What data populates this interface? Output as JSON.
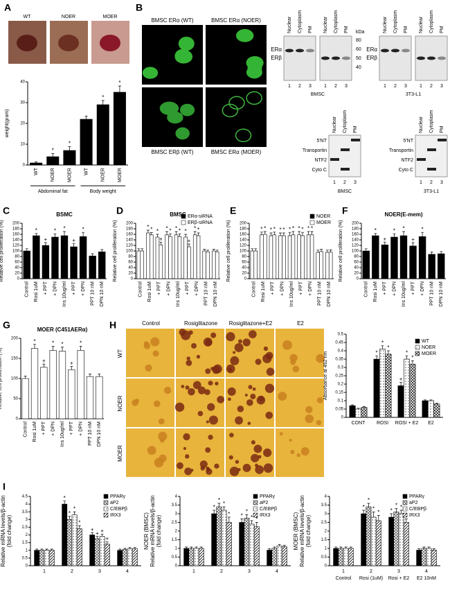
{
  "panel_labels": {
    "a": "A",
    "b": "B",
    "c": "C",
    "d": "D",
    "e": "E",
    "f": "F",
    "g": "G",
    "h": "H",
    "i": "I"
  },
  "panel_a": {
    "photos": [
      "WT",
      "NOER",
      "MOER"
    ]
  },
  "panel_b": {
    "images": [
      "BMSC ERα (WT)",
      "BMSC ERα (NOER)",
      "BMSC ERβ (WT)",
      "BMSC ERα (MOER)"
    ],
    "er_blots": [
      {
        "lanes_a": [
          "Nuclear",
          "Cytoplasm",
          "PM"
        ],
        "lanes_b": [
          "Nuclear",
          "Cytoplasm",
          "PM"
        ],
        "bands": [
          "ERα",
          "ERβ"
        ],
        "kda_title": "kDa",
        "kda": [
          "80",
          "60",
          "50",
          "40"
        ],
        "numbers_a": [
          "1",
          "2",
          "3"
        ],
        "numbers_b": [
          "1",
          "2",
          "3"
        ],
        "cell": "BMSC"
      },
      {
        "lanes_a": [
          "Nuclear",
          "Cytoplasm",
          "PM"
        ],
        "lanes_b": [
          "Nuclear",
          "Cytoplasm",
          "PM"
        ],
        "bands": [
          "ERα",
          "ERβ"
        ],
        "numbers_a": [
          "1",
          "2",
          "3"
        ],
        "numbers_b": [
          "1",
          "2",
          "3"
        ],
        "cell": "3T3-L1"
      }
    ],
    "fraction_blots": [
      {
        "lanes": [
          "Nuclear",
          "Cytoplasm",
          "PM"
        ],
        "markers": [
          "5'NT",
          "Transportin",
          "NTF2",
          "Cyto C"
        ],
        "numbers": [
          "1",
          "2",
          "3"
        ],
        "cell": "BMSC"
      },
      {
        "lanes": [
          "Nuclear",
          "Cytoplasm",
          "PM"
        ],
        "markers": [
          "5'NT",
          "Transportin",
          "NTF2",
          "Cyto C"
        ],
        "numbers": [
          "1",
          "2",
          "3"
        ],
        "cell": "3T3-L1"
      }
    ]
  },
  "panel_h": {
    "columns": [
      "Control",
      "Rosiglitazone",
      "Rosiglitazone+E2",
      "E2"
    ],
    "rows": [
      "WT",
      "NOER",
      "MOER"
    ]
  },
  "chart_data": [
    {
      "type": "bar",
      "ylabel": "weight(gram)",
      "categories": [
        "WT",
        "NOER",
        "MOER",
        "WT",
        "NOER",
        "MOER"
      ],
      "group_labels": [
        "Abdominal fat",
        "Body weight"
      ],
      "values": [
        1,
        4,
        7,
        22,
        29,
        35
      ],
      "errors": [
        0.5,
        1.5,
        1.8,
        1.5,
        2,
        3
      ],
      "marks": [
        null,
        "*",
        "*",
        null,
        "*",
        "*"
      ],
      "color": "#000000",
      "ylim": [
        0,
        40
      ],
      "yticks": [
        0,
        10,
        20,
        30,
        40
      ]
    },
    {
      "type": "bar",
      "title": "BSMC",
      "ylabel": "Relative cell proliferation (%)",
      "categories": [
        "Control",
        "Rosi 1uM",
        "+ PPT",
        "+ DPN",
        "Ins 10ug/ml",
        "+ PPT",
        "+ DPN",
        "PPT 10 nM",
        "DPN 10 nM"
      ],
      "values": [
        100,
        155,
        120,
        150,
        155,
        115,
        152,
        82,
        97
      ],
      "errors": [
        8,
        8,
        10,
        12,
        15,
        12,
        15,
        8,
        8
      ],
      "marks": [
        null,
        "*",
        "+",
        "*",
        "*",
        "+",
        "*",
        null,
        null
      ],
      "color": "#000000",
      "ylim": [
        0,
        200
      ],
      "yticks": [
        0,
        20,
        40,
        60,
        80,
        100,
        120,
        140,
        160,
        180,
        200
      ]
    },
    {
      "type": "bar",
      "title": "BMSC",
      "ylabel": "Relative cell proliferation (%)",
      "categories": [
        "Control",
        "Rosi 1uM",
        "+ PPT",
        "+ DPN",
        "Ins 10ug/ml",
        "+ PPT",
        "+ DPN",
        "PPT 10 nM",
        "DPN 10 nM"
      ],
      "series": [
        {
          "name": "ERα-siRNA",
          "color": "#ffffff",
          "legend_color": "#000000",
          "values": [
            100,
            165,
            150,
            158,
            158,
            150,
            158,
            100,
            100
          ],
          "errors": [
            8,
            10,
            10,
            12,
            12,
            10,
            12,
            6,
            6
          ],
          "marks": [
            null,
            "*",
            "*",
            "*",
            "*",
            "*",
            "*",
            null,
            null
          ]
        },
        {
          "name": "ERβ-siRNA",
          "color": "#ffffff",
          "values": [
            100,
            158,
            122,
            152,
            152,
            115,
            155,
            97,
            97
          ],
          "errors": [
            8,
            8,
            10,
            10,
            10,
            10,
            10,
            6,
            6
          ],
          "marks": [
            null,
            "*",
            "+",
            "*",
            "*",
            "+",
            "*",
            null,
            null
          ]
        }
      ],
      "ylim": [
        0,
        200
      ],
      "yticks": [
        0,
        20,
        40,
        60,
        80,
        100,
        120,
        140,
        160,
        180,
        200
      ]
    },
    {
      "type": "bar",
      "ylabel": "Relative cell proliferation (%)",
      "categories": [
        "Control",
        "Rosi 1uM",
        "+ PPT",
        "+ DPN",
        "Ins 10ug/ml",
        "+ PPT",
        "+ DPN",
        "PPT 10 nM",
        "DPN 10 nM"
      ],
      "series": [
        {
          "name": "NOER",
          "color": "#ffffff",
          "legend_color": "#000000",
          "values": [
            100,
            158,
            155,
            155,
            155,
            158,
            158,
            95,
            95
          ],
          "errors": [
            8,
            10,
            10,
            10,
            12,
            12,
            12,
            8,
            8
          ],
          "marks": [
            null,
            "*",
            "*",
            "*",
            "*",
            "*",
            "*",
            null,
            null
          ]
        },
        {
          "name": "MOER",
          "color": "#ffffff",
          "values": [
            100,
            160,
            158,
            155,
            158,
            155,
            158,
            98,
            96
          ],
          "errors": [
            8,
            10,
            10,
            10,
            12,
            12,
            12,
            8,
            8
          ],
          "marks": [
            null,
            "*",
            "*",
            "*",
            "*",
            "*",
            "*",
            null,
            null
          ]
        }
      ],
      "ylim": [
        0,
        200
      ],
      "yticks": [
        0,
        20,
        40,
        60,
        80,
        100,
        120,
        140,
        160,
        180,
        200
      ]
    },
    {
      "type": "bar",
      "title": "NOER(E-mem)",
      "ylabel": "Relative cell proliferation (%)",
      "categories": [
        "Control",
        "Rosi 1uM",
        "+ PPT",
        "+ DPN",
        "Ins 10ug/ml",
        "+ PPT",
        "+ DPN",
        "PPT 10 nM",
        "DPN 10 nM"
      ],
      "values": [
        100,
        155,
        122,
        150,
        155,
        118,
        152,
        88,
        90
      ],
      "errors": [
        8,
        8,
        10,
        12,
        15,
        12,
        15,
        8,
        8
      ],
      "marks": [
        null,
        "*",
        "+",
        "*",
        "*",
        "+",
        "*",
        null,
        null
      ],
      "color": "#000000",
      "ylim": [
        0,
        200
      ],
      "yticks": [
        0,
        20,
        40,
        60,
        80,
        100,
        120,
        140,
        160,
        180,
        200
      ]
    },
    {
      "type": "bar",
      "title": "MOER (C451AERα)",
      "ylabel": "Relative cell proliferation (%)",
      "categories": [
        "Control",
        "Rosi 1uM",
        "+ PPT",
        "+ DPN",
        "Ins 10ug/ml",
        "+ PPT",
        "+ DPN",
        "PPT 10 nM",
        "DPN 10 nM"
      ],
      "values": [
        100,
        175,
        128,
        170,
        168,
        122,
        170,
        105,
        105
      ],
      "errors": [
        6,
        10,
        8,
        10,
        10,
        8,
        10,
        6,
        6
      ],
      "marks": [
        null,
        "*",
        "+",
        "*",
        "*",
        "+",
        "*",
        null,
        null
      ],
      "color": "#ffffff",
      "ylim": [
        0,
        200
      ],
      "yticks": [
        0,
        50,
        100,
        150,
        200
      ]
    },
    {
      "type": "bar",
      "ylabel": "Absorbance at 492 nm",
      "categories": [
        "CONT",
        "ROSI",
        "ROSI + E2",
        "E2"
      ],
      "series": [
        {
          "name": "WT",
          "color": "#000000",
          "values": [
            0.07,
            0.35,
            0.19,
            0.1
          ],
          "errors": [
            0.005,
            0.02,
            0.02,
            0.005
          ],
          "marks": [
            null,
            "*",
            "+",
            null
          ]
        },
        {
          "name": "NOER",
          "color": "#777777",
          "pattern": "dots",
          "values": [
            0.05,
            0.41,
            0.35,
            0.1
          ],
          "errors": [
            0.005,
            0.02,
            0.02,
            0.005
          ],
          "marks": [
            null,
            "*",
            "*",
            null
          ]
        },
        {
          "name": "MOER",
          "color": "#000000",
          "pattern": "cross",
          "values": [
            0.06,
            0.38,
            0.32,
            0.08
          ],
          "errors": [
            0.005,
            0.02,
            0.02,
            0.005
          ],
          "marks": [
            null,
            "*",
            "*",
            null
          ]
        }
      ],
      "ylim": [
        0,
        0.5
      ],
      "yticks": [
        0,
        0.05,
        0.1,
        0.15,
        0.2,
        0.25,
        0.3,
        0.35,
        0.4,
        0.45,
        0.5
      ]
    },
    {
      "type": "bar",
      "ylabel": [
        "WT (BMSC)",
        "Relative mRNA levels/β-actin",
        "(fold change)"
      ],
      "categories": [
        "1",
        "2",
        "3",
        "4"
      ],
      "series": [
        {
          "name": "PPARγ",
          "color": "#000000",
          "values": [
            1,
            4.0,
            2.0,
            1.0
          ],
          "errors": [
            0.08,
            0.2,
            0.15,
            0.08
          ],
          "marks": [
            null,
            "*",
            "+",
            null
          ]
        },
        {
          "name": "aP2",
          "color": "#444444",
          "pattern": "cross",
          "values": [
            1,
            3.0,
            1.75,
            1.05
          ],
          "errors": [
            0.08,
            0.2,
            0.15,
            0.08
          ],
          "marks": [
            null,
            "*",
            "+",
            null
          ]
        },
        {
          "name": "C/EBPβ",
          "color": "#777777",
          "pattern": "dots",
          "values": [
            1,
            3.3,
            1.9,
            1.1
          ],
          "errors": [
            0.08,
            0.2,
            0.15,
            0.08
          ],
          "marks": [
            null,
            "*",
            "+",
            null
          ]
        },
        {
          "name": "IRX3",
          "color": "#000000",
          "pattern": "hatch",
          "values": [
            1,
            2.4,
            1.4,
            1.1
          ],
          "errors": [
            0.08,
            0.2,
            0.15,
            0.08
          ],
          "marks": [
            null,
            "*",
            "+",
            null
          ]
        }
      ],
      "ylim": [
        0,
        4.5
      ],
      "yticks": [
        0,
        0.5,
        1,
        1.5,
        2,
        2.5,
        3,
        3.5,
        4,
        4.5
      ]
    },
    {
      "type": "bar",
      "ylabel": [
        "NOER (BMSC)",
        "Relative mRNA levels/β-actin",
        "(fold change)"
      ],
      "categories": [
        "1",
        "2",
        "3",
        "4"
      ],
      "series": [
        {
          "name": "PPARγ",
          "color": "#000000",
          "values": [
            1,
            3.0,
            2.5,
            0.9
          ],
          "errors": [
            0.08,
            0.2,
            0.2,
            0.08
          ],
          "marks": [
            null,
            "*",
            "*",
            null
          ]
        },
        {
          "name": "aP2",
          "color": "#444444",
          "pattern": "cross",
          "values": [
            1,
            3.4,
            2.75,
            1.0
          ],
          "errors": [
            0.08,
            0.2,
            0.2,
            0.08
          ],
          "marks": [
            null,
            "*",
            "*",
            null
          ]
        },
        {
          "name": "C/EBPβ",
          "color": "#777777",
          "pattern": "dots",
          "values": [
            1,
            3.2,
            2.4,
            1.15
          ],
          "errors": [
            0.08,
            0.2,
            0.2,
            0.08
          ],
          "marks": [
            null,
            "*",
            "*",
            null
          ]
        },
        {
          "name": "IRX3",
          "color": "#000000",
          "pattern": "hatch",
          "values": [
            1,
            2.5,
            2.25,
            1.1
          ],
          "errors": [
            0.08,
            0.3,
            0.25,
            0.08
          ],
          "marks": [
            null,
            "*",
            "*",
            null
          ]
        }
      ],
      "ylim": [
        0,
        4
      ],
      "yticks": [
        0,
        0.5,
        1,
        1.5,
        2,
        2.5,
        3,
        3.5,
        4
      ]
    },
    {
      "type": "bar",
      "ylabel": [
        "MOER (BMSC)",
        "Relative mRNA levels/β-actin",
        "(fold change)"
      ],
      "categories": [
        "1",
        "2",
        "3",
        "4"
      ],
      "conditions": [
        "Control",
        "Rosi (1uM)",
        "Rosi + E2",
        "E2 10nM"
      ],
      "series": [
        {
          "name": "PPARγ",
          "color": "#000000",
          "values": [
            1,
            3.0,
            2.8,
            0.9
          ],
          "errors": [
            0.08,
            0.2,
            0.2,
            0.08
          ],
          "marks": [
            null,
            "*",
            "*",
            null
          ]
        },
        {
          "name": "aP2",
          "color": "#444444",
          "pattern": "cross",
          "values": [
            1,
            3.4,
            3.1,
            1.0
          ],
          "errors": [
            0.08,
            0.2,
            0.2,
            0.08
          ],
          "marks": [
            null,
            "*",
            "*",
            null
          ]
        },
        {
          "name": "C/EBPβ",
          "color": "#777777",
          "pattern": "dots",
          "values": [
            1,
            2.8,
            3.0,
            1.0
          ],
          "errors": [
            0.08,
            0.3,
            0.2,
            0.08
          ],
          "marks": [
            null,
            "*",
            "*",
            null
          ]
        },
        {
          "name": "IRX3",
          "color": "#000000",
          "pattern": "hatch",
          "values": [
            1,
            2.6,
            2.5,
            0.9
          ],
          "errors": [
            0.08,
            0.3,
            0.2,
            0.08
          ],
          "marks": [
            null,
            "*",
            "*",
            null
          ]
        }
      ],
      "ylim": [
        0,
        4
      ],
      "yticks": [
        0,
        0.5,
        1,
        1.5,
        2,
        2.5,
        3,
        3.5,
        4
      ]
    }
  ]
}
